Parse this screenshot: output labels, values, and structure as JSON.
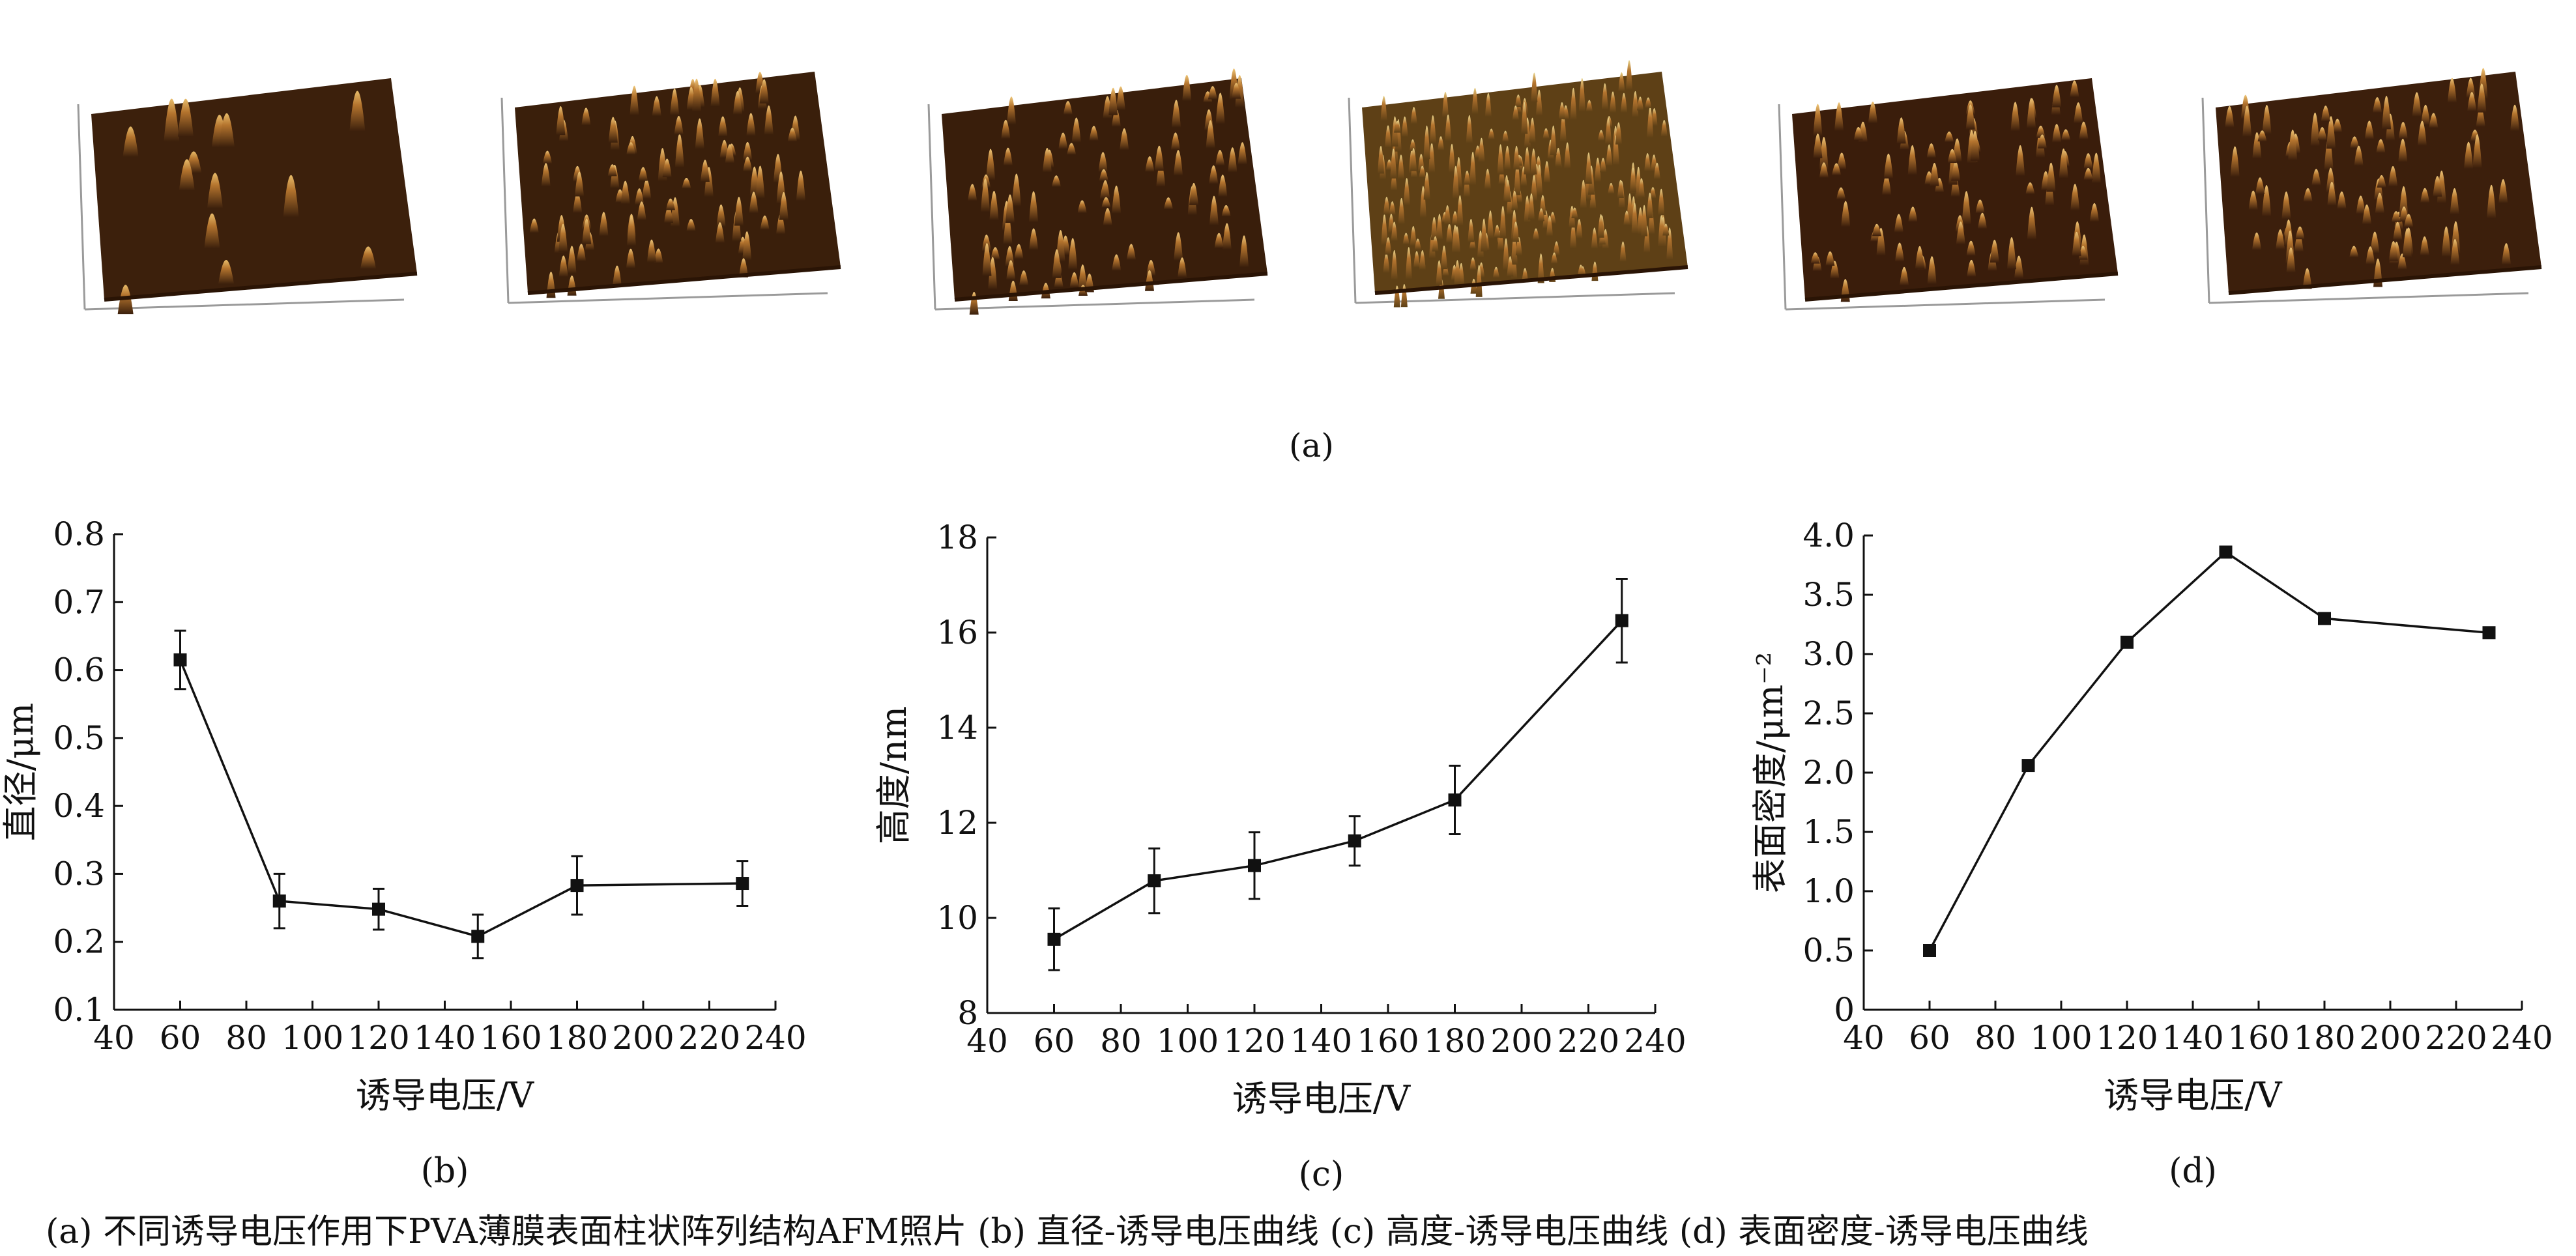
{
  "afm": {
    "label": "(a)",
    "panels": [
      {
        "base_color": "#3c200c",
        "light_color": "#e8bc6a",
        "spike_density": "sparse"
      },
      {
        "base_color": "#3a1f0b",
        "light_color": "#f0c87a",
        "spike_density": "dense"
      },
      {
        "base_color": "#391e0b",
        "light_color": "#f0c87a",
        "spike_density": "dense"
      },
      {
        "base_color": "#5e4016",
        "light_color": "#e9d48c",
        "spike_density": "very-dense"
      },
      {
        "base_color": "#3a1d0b",
        "light_color": "#f0c87a",
        "spike_density": "dense"
      },
      {
        "base_color": "#3c1f0c",
        "light_color": "#f0c87a",
        "spike_density": "dense"
      }
    ]
  },
  "chart_data": [
    {
      "id": "b",
      "type": "line",
      "sublabel": "(b)",
      "xlabel": "诱导电压/V",
      "ylabel": "直径/μm",
      "xlim": [
        40,
        240
      ],
      "ylim": [
        0.1,
        0.8
      ],
      "xticks": [
        40,
        60,
        80,
        100,
        120,
        140,
        160,
        180,
        200,
        220,
        240
      ],
      "yticks": [
        "0.1",
        "0.2",
        "0.3",
        "0.4",
        "0.5",
        "0.6",
        "0.7",
        "0.8"
      ],
      "grid": false,
      "series": [
        {
          "x": [
            60,
            90,
            120,
            150,
            180,
            230
          ],
          "y": [
            0.615,
            0.26,
            0.248,
            0.208,
            0.283,
            0.286
          ],
          "err": [
            0.043,
            0.04,
            0.03,
            0.032,
            0.043,
            0.033
          ]
        }
      ]
    },
    {
      "id": "c",
      "type": "line",
      "sublabel": "(c)",
      "xlabel": "诱导电压/V",
      "ylabel": "高度/nm",
      "xlim": [
        40,
        240
      ],
      "ylim": [
        8,
        18
      ],
      "xticks": [
        40,
        60,
        80,
        100,
        120,
        140,
        160,
        180,
        200,
        220,
        240
      ],
      "yticks": [
        "8",
        "10",
        "12",
        "14",
        "16",
        "18"
      ],
      "grid": false,
      "series": [
        {
          "x": [
            60,
            90,
            120,
            150,
            180,
            230
          ],
          "y": [
            9.55,
            10.78,
            11.1,
            11.62,
            12.48,
            16.25
          ],
          "err": [
            0.65,
            0.68,
            0.7,
            0.52,
            0.72,
            0.88
          ]
        }
      ]
    },
    {
      "id": "d",
      "type": "line",
      "sublabel": "(d)",
      "xlabel": "诱导电压/V",
      "ylabel": "表面密度/μm⁻²",
      "xlim": [
        40,
        240
      ],
      "ylim": [
        0,
        4.0
      ],
      "xticks": [
        40,
        60,
        80,
        100,
        120,
        140,
        160,
        180,
        200,
        220,
        240
      ],
      "yticks": [
        "0",
        "0.5",
        "1.0",
        "1.5",
        "2.0",
        "2.5",
        "3.0",
        "3.5",
        "4.0"
      ],
      "grid": false,
      "series": [
        {
          "x": [
            60,
            90,
            120,
            150,
            180,
            230
          ],
          "y": [
            0.5,
            2.06,
            3.1,
            3.86,
            3.3,
            3.18
          ],
          "err": []
        }
      ]
    }
  ],
  "caption": "(a) 不同诱导电压作用下PVA薄膜表面柱状阵列结构AFM照片 (b) 直径-诱导电压曲线 (c) 高度-诱导电压曲线 (d) 表面密度-诱导电压曲线"
}
